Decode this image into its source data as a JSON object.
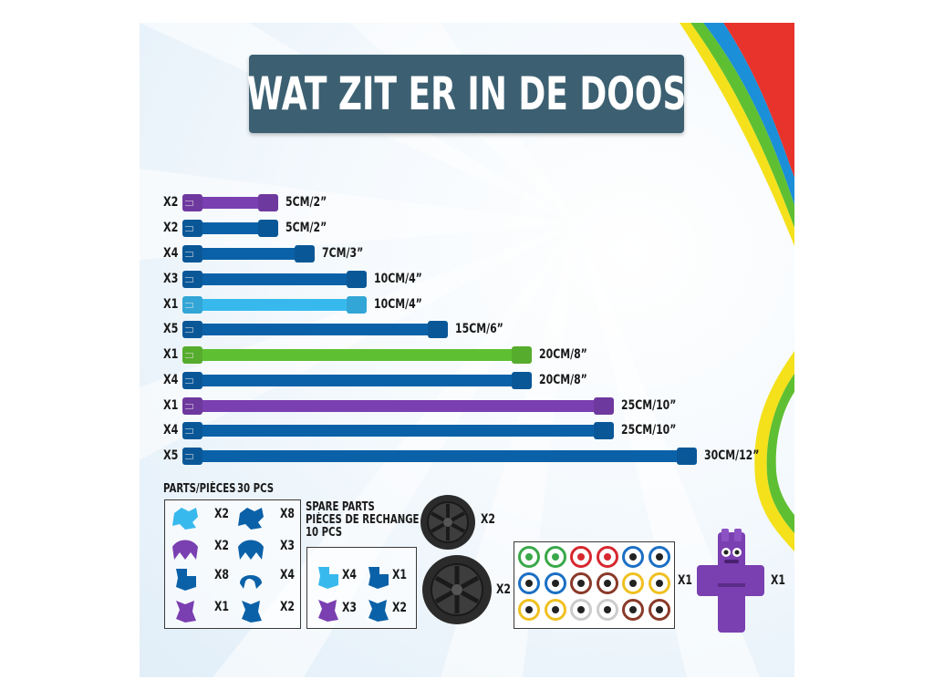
{
  "title": "WAT ZIT ER IN DE DOOS",
  "colors": {
    "title_bg": "#3c6072",
    "purple": "#7a3fb0",
    "dark_blue": "#0b61a8",
    "light_blue": "#38b9ee",
    "green": "#5fbf32",
    "wheel": "#2b2b2b"
  },
  "rods": [
    {
      "qty": "X2",
      "length": "5CM/2”",
      "color": "purple"
    },
    {
      "qty": "X2",
      "length": "5CM/2”",
      "color": "dark_blue"
    },
    {
      "qty": "X4",
      "length": "7CM/3”",
      "color": "dark_blue"
    },
    {
      "qty": "X3",
      "length": "10CM/4”",
      "color": "dark_blue"
    },
    {
      "qty": "X1",
      "length": "10CM/4”",
      "color": "light_blue"
    },
    {
      "qty": "X5",
      "length": "15CM/6”",
      "color": "dark_blue"
    },
    {
      "qty": "X1",
      "length": "20CM/8”",
      "color": "green"
    },
    {
      "qty": "X4",
      "length": "20CM/8”",
      "color": "dark_blue"
    },
    {
      "qty": "X1",
      "length": "25CM/10”",
      "color": "purple"
    },
    {
      "qty": "X4",
      "length": "25CM/10”",
      "color": "dark_blue"
    },
    {
      "qty": "X5",
      "length": "30CM/12”",
      "color": "dark_blue"
    }
  ],
  "parts": {
    "heading": "PARTS/PIÈCES",
    "count": "30 PCS",
    "items": [
      {
        "qty": "X2",
        "color": "light_blue",
        "icon": "connector-4way-icon"
      },
      {
        "qty": "X8",
        "color": "dark_blue",
        "icon": "connector-4way-icon"
      },
      {
        "qty": "X2",
        "color": "purple",
        "icon": "connector-3way-icon"
      },
      {
        "qty": "X3",
        "color": "dark_blue",
        "icon": "connector-3way-icon"
      },
      {
        "qty": "X8",
        "color": "dark_blue",
        "icon": "connector-corner-icon"
      },
      {
        "qty": "X4",
        "color": "dark_blue",
        "icon": "connector-arc-icon"
      },
      {
        "qty": "X1",
        "color": "purple",
        "icon": "connector-angle-icon"
      },
      {
        "qty": "X2",
        "color": "dark_blue",
        "icon": "connector-angle-icon"
      }
    ]
  },
  "spare": {
    "line1": "SPARE PARTS",
    "line2": "PIÈCES DE RECHANGE",
    "line3": "10 PCS",
    "items": [
      {
        "qty": "X4",
        "color": "light_blue",
        "icon": "connector-corner-icon"
      },
      {
        "qty": "X1",
        "color": "dark_blue",
        "icon": "connector-corner-icon"
      },
      {
        "qty": "X3",
        "color": "purple",
        "icon": "connector-angle-icon"
      },
      {
        "qty": "X2",
        "color": "dark_blue",
        "icon": "connector-angle-icon"
      }
    ]
  },
  "wheels": [
    {
      "qty": "X2",
      "size": "small"
    },
    {
      "qty": "X2",
      "size": "large"
    }
  ],
  "stickers": {
    "qty": "X1"
  },
  "figure": {
    "qty": "X1"
  }
}
